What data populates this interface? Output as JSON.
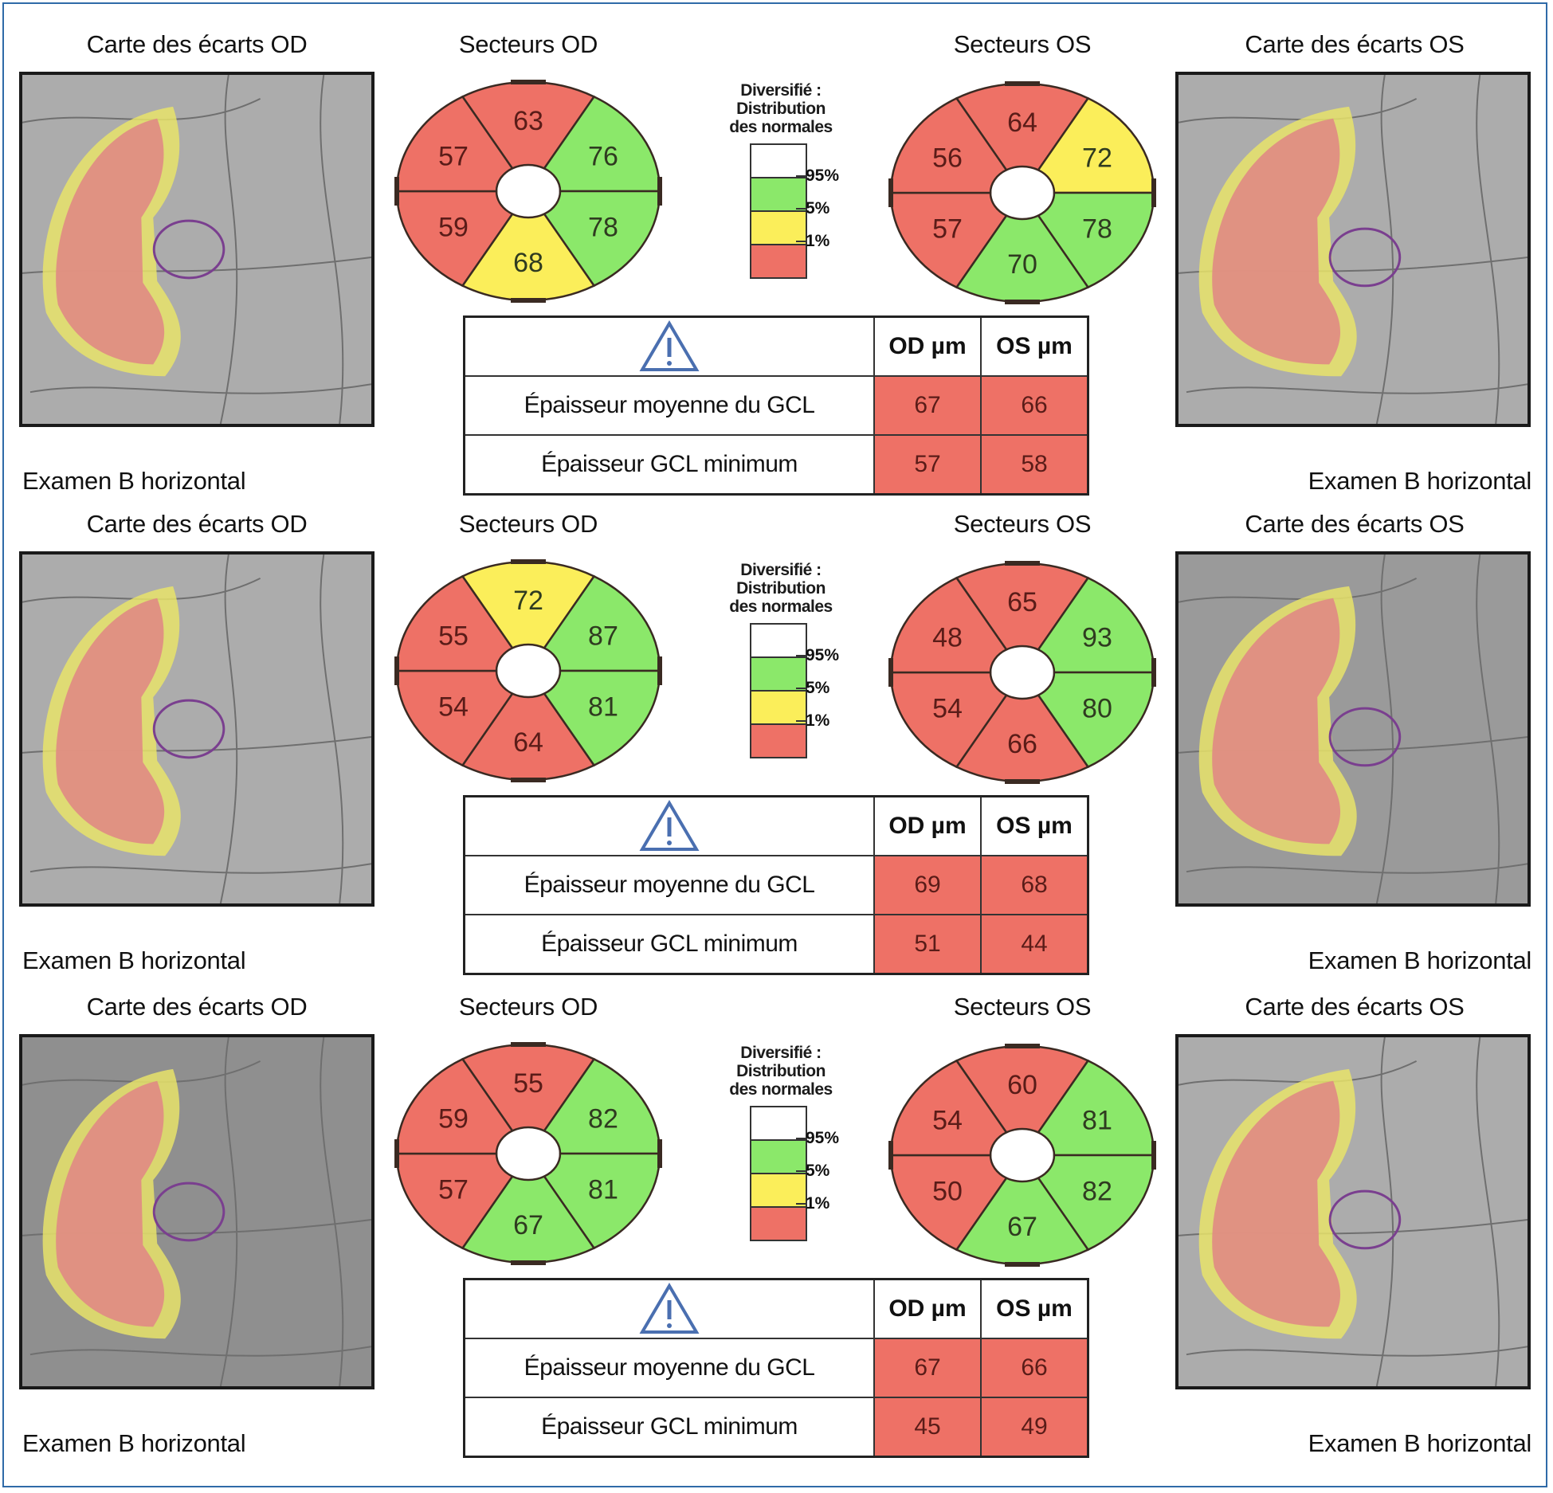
{
  "colors": {
    "red": "#ee7166",
    "green": "#8be86a",
    "yellow": "#fbee5a",
    "white": "#ffffff",
    "overlay_red": "#e08a84",
    "overlay_yellow": "#e7e36a",
    "ellipse": "#7a3f8f",
    "warning_blue": "#4a6fb0",
    "frame_blue": "#2f6aa8"
  },
  "legend": {
    "title_lines": [
      "Diversifié :",
      "Distribution",
      "des normales"
    ],
    "ticks": [
      "95%",
      "5%",
      "1%"
    ],
    "bands": [
      "white",
      "green",
      "yellow",
      "red"
    ]
  },
  "table_header": {
    "icon": "warning-triangle-icon",
    "od": "OD µm",
    "os": "OS µm"
  },
  "table_rows_labels": [
    "Épaisseur moyenne du GCL",
    "Épaisseur GCL minimum"
  ],
  "rows": [
    {
      "od_map_title": "Carte des écarts OD",
      "od_sector_title": "Secteurs OD",
      "os_sector_title": "Secteurs OS",
      "os_map_title": "Carte des écarts OS",
      "od_exam": "Examen B horizontal",
      "os_exam": "Examen B horizontal",
      "od_sectors": [
        {
          "pos": "superior",
          "value": "63",
          "class": "red"
        },
        {
          "pos": "superonasal",
          "value": "76",
          "class": "green"
        },
        {
          "pos": "inferonasal",
          "value": "78",
          "class": "green"
        },
        {
          "pos": "inferior",
          "value": "68",
          "class": "yellow"
        },
        {
          "pos": "inferotemporal",
          "value": "59",
          "class": "red"
        },
        {
          "pos": "superotemporal",
          "value": "57",
          "class": "red"
        }
      ],
      "os_sectors": [
        {
          "pos": "superior",
          "value": "64",
          "class": "red"
        },
        {
          "pos": "superotemporal",
          "value": "72",
          "class": "yellow"
        },
        {
          "pos": "inferotemporal",
          "value": "78",
          "class": "green"
        },
        {
          "pos": "inferior",
          "value": "70",
          "class": "green"
        },
        {
          "pos": "inferonasal",
          "value": "57",
          "class": "red"
        },
        {
          "pos": "superonasal",
          "value": "56",
          "class": "red"
        }
      ],
      "table": {
        "mean_od": "67",
        "mean_os": "66",
        "min_od": "57",
        "min_os": "58"
      }
    },
    {
      "od_map_title": "Carte des écarts OD",
      "od_sector_title": "Secteurs OD",
      "os_sector_title": "Secteurs OS",
      "os_map_title": "Carte des écarts OS",
      "od_exam": "Examen B horizontal",
      "os_exam": "Examen B horizontal",
      "od_sectors": [
        {
          "pos": "superior",
          "value": "72",
          "class": "yellow"
        },
        {
          "pos": "superonasal",
          "value": "87",
          "class": "green"
        },
        {
          "pos": "inferonasal",
          "value": "81",
          "class": "green"
        },
        {
          "pos": "inferior",
          "value": "64",
          "class": "red"
        },
        {
          "pos": "inferotemporal",
          "value": "54",
          "class": "red"
        },
        {
          "pos": "superotemporal",
          "value": "55",
          "class": "red"
        }
      ],
      "os_sectors": [
        {
          "pos": "superior",
          "value": "65",
          "class": "red"
        },
        {
          "pos": "superotemporal",
          "value": "93",
          "class": "green"
        },
        {
          "pos": "inferotemporal",
          "value": "80",
          "class": "green"
        },
        {
          "pos": "inferior",
          "value": "66",
          "class": "red"
        },
        {
          "pos": "inferonasal",
          "value": "54",
          "class": "red"
        },
        {
          "pos": "superonasal",
          "value": "48",
          "class": "red"
        }
      ],
      "table": {
        "mean_od": "69",
        "mean_os": "68",
        "min_od": "51",
        "min_os": "44"
      }
    },
    {
      "od_map_title": "Carte des écarts OD",
      "od_sector_title": "Secteurs OD",
      "os_sector_title": "Secteurs OS",
      "os_map_title": "Carte des écarts OS",
      "od_exam": "Examen B horizontal",
      "os_exam": "Examen B horizontal",
      "od_sectors": [
        {
          "pos": "superior",
          "value": "55",
          "class": "red"
        },
        {
          "pos": "superonasal",
          "value": "82",
          "class": "green"
        },
        {
          "pos": "inferonasal",
          "value": "81",
          "class": "green"
        },
        {
          "pos": "inferior",
          "value": "67",
          "class": "green"
        },
        {
          "pos": "inferotemporal",
          "value": "57",
          "class": "red"
        },
        {
          "pos": "superotemporal",
          "value": "59",
          "class": "red"
        }
      ],
      "os_sectors": [
        {
          "pos": "superior",
          "value": "60",
          "class": "red"
        },
        {
          "pos": "superotemporal",
          "value": "81",
          "class": "green"
        },
        {
          "pos": "inferotemporal",
          "value": "82",
          "class": "green"
        },
        {
          "pos": "inferior",
          "value": "67",
          "class": "green"
        },
        {
          "pos": "inferonasal",
          "value": "50",
          "class": "red"
        },
        {
          "pos": "superonasal",
          "value": "54",
          "class": "red"
        }
      ],
      "table": {
        "mean_od": "67",
        "mean_os": "66",
        "min_od": "45",
        "min_os": "49"
      }
    }
  ]
}
